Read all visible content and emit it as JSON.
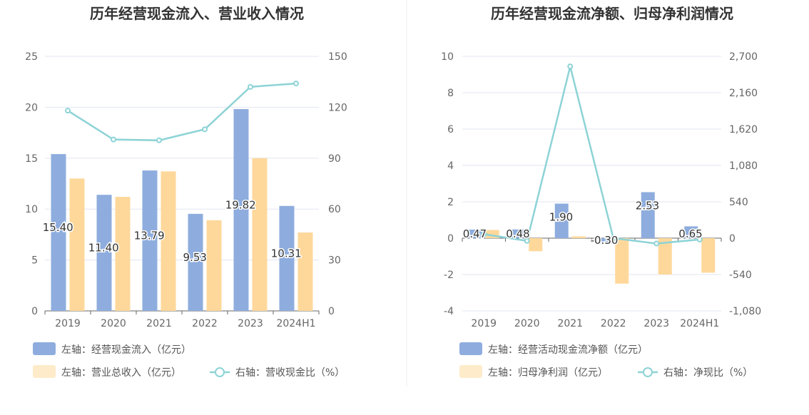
{
  "colors": {
    "bar_primary": "#8eadde",
    "bar_secondary": "#fed89b",
    "legend_secondary": "#feebc9",
    "line": "#8dd3d6",
    "grid": "#e3e6f2",
    "axis": "#666666",
    "divider": "#eeeeee"
  },
  "chart_data": [
    {
      "type": "bar",
      "title": "历年经营现金流入、营业收入情况",
      "categories": [
        "2019",
        "2020",
        "2021",
        "2022",
        "2023",
        "2024H1"
      ],
      "left_axis": {
        "ticks": [
          "0",
          "5",
          "10",
          "15",
          "20",
          "25"
        ],
        "range": [
          0,
          25
        ]
      },
      "right_axis": {
        "ticks": [
          "0",
          "30",
          "60",
          "90",
          "120",
          "150"
        ],
        "range": [
          0,
          150
        ]
      },
      "grid": true,
      "legend_position": "bottom",
      "series": [
        {
          "name": "左轴：经营现金流入（亿元）",
          "type": "bar",
          "axis": "left",
          "values": [
            15.4,
            11.4,
            13.79,
            9.53,
            19.82,
            10.31
          ],
          "labels": [
            "15.40",
            "11.40",
            "13.79",
            "9.53",
            "19.82",
            "10.31"
          ]
        },
        {
          "name": "左轴：营业总收入（亿元）",
          "type": "bar",
          "axis": "left",
          "values": [
            13.0,
            11.2,
            13.7,
            8.9,
            15.0,
            7.7
          ]
        },
        {
          "name": "右轴：营收现金比（%）",
          "type": "line",
          "axis": "right",
          "values": [
            118,
            101,
            100.5,
            107,
            132,
            134
          ]
        }
      ]
    },
    {
      "type": "bar",
      "title": "历年经营现金流净额、归母净利润情况",
      "categories": [
        "2019",
        "2020",
        "2021",
        "2022",
        "2023",
        "2024H1"
      ],
      "left_axis": {
        "ticks": [
          "-4",
          "-2",
          "0",
          "2",
          "4",
          "6",
          "8",
          "10"
        ],
        "range": [
          -4,
          10
        ]
      },
      "right_axis": {
        "ticks": [
          "-1,080",
          "-540",
          "0",
          "540",
          "1,080",
          "1,620",
          "2,160",
          "2,700"
        ],
        "range": [
          -1080,
          2700
        ]
      },
      "grid": true,
      "legend_position": "bottom",
      "series": [
        {
          "name": "左轴：经营活动现金流净额（亿元）",
          "type": "bar",
          "axis": "left",
          "values": [
            0.47,
            0.48,
            1.9,
            -0.3,
            2.53,
            0.65
          ],
          "labels": [
            "0.47",
            "0.48",
            "1.90",
            "-0.30",
            "2.53",
            "0.65"
          ]
        },
        {
          "name": "左轴：归母净利润（亿元）",
          "type": "bar",
          "axis": "left",
          "values": [
            0.45,
            -0.72,
            0.1,
            -2.5,
            -2.0,
            -1.9
          ]
        },
        {
          "name": "右轴：净现比（%）",
          "type": "line",
          "axis": "right",
          "values": [
            60,
            -40,
            2550,
            0,
            -80,
            -20
          ]
        }
      ]
    }
  ]
}
